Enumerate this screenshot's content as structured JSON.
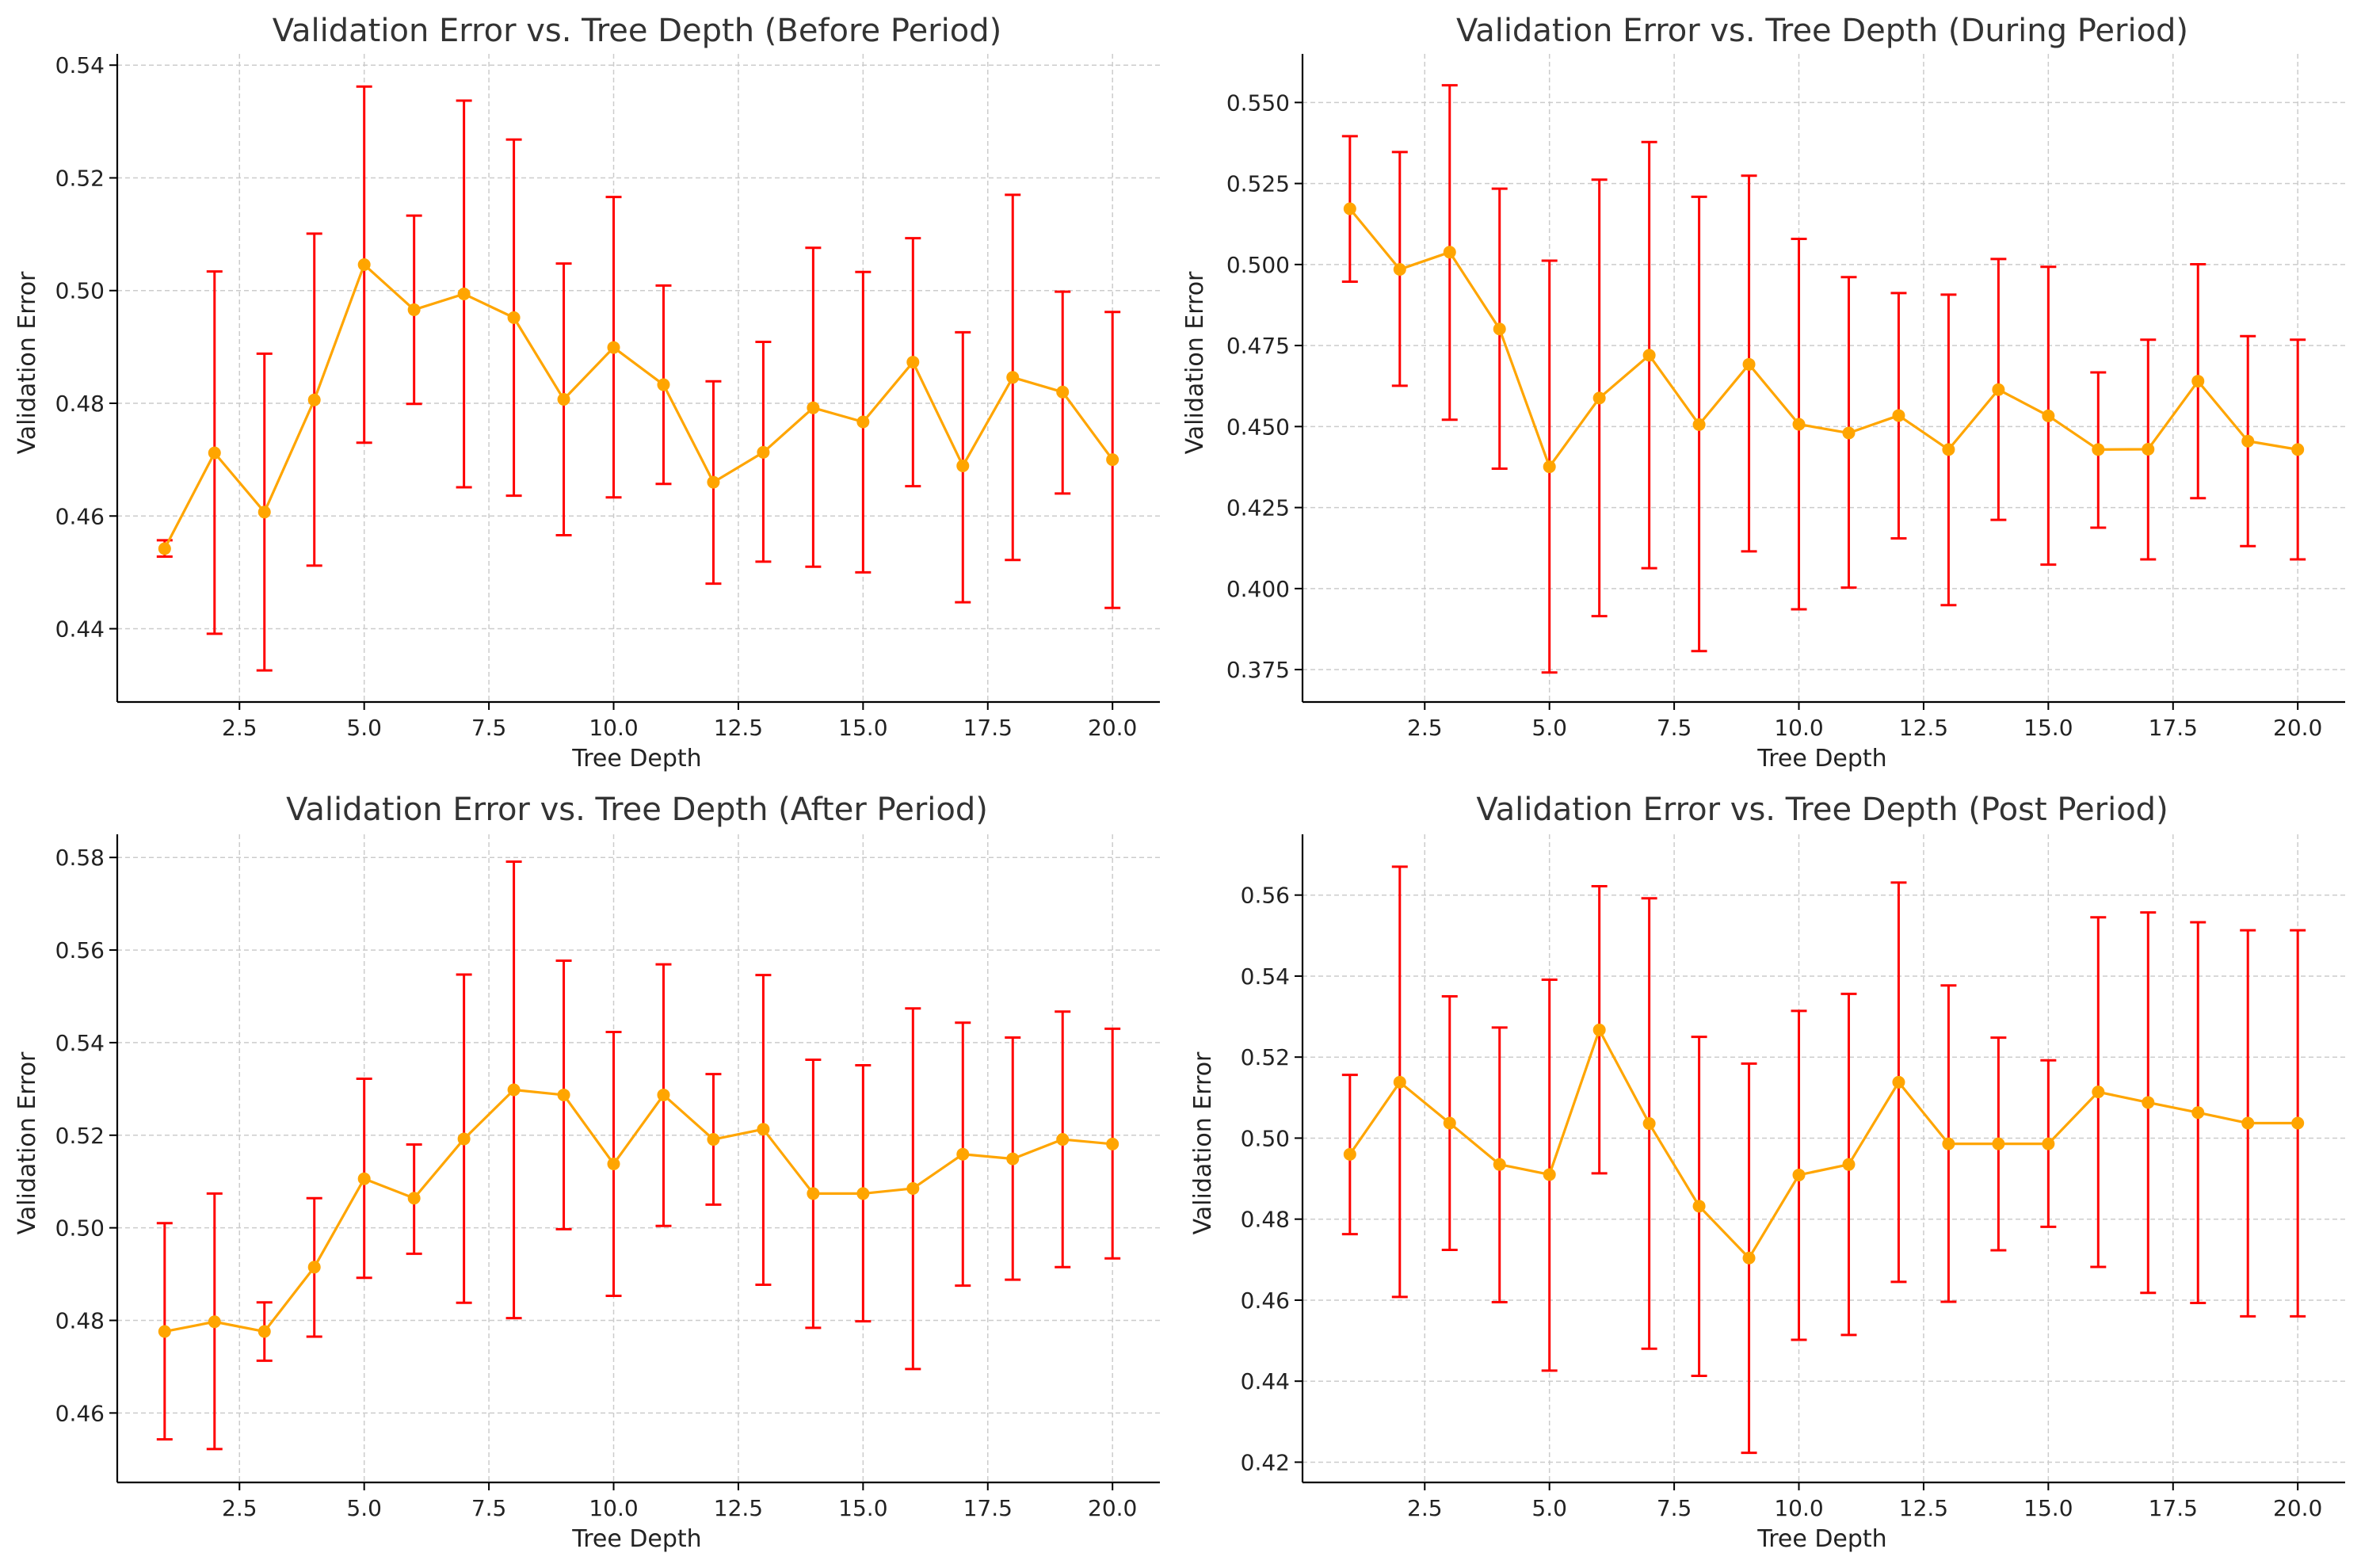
{
  "colors": {
    "line": "#ffa500",
    "errorbar": "#ff0000",
    "grid": "#cccccc",
    "axis": "#000000"
  },
  "chart_data": [
    {
      "type": "line",
      "title": "Validation Error vs. Tree Depth (Before Period)",
      "xlabel": "Tree Depth",
      "ylabel": "Validation Error",
      "grid": true,
      "xlim": [
        0.05,
        20.95
      ],
      "ylim": [
        0.427,
        0.542
      ],
      "xticks": [
        2.5,
        5.0,
        7.5,
        10.0,
        12.5,
        15.0,
        17.5,
        20.0
      ],
      "xtick_labels": [
        "2.5",
        "5.0",
        "7.5",
        "10.0",
        "12.5",
        "15.0",
        "17.5",
        "20.0"
      ],
      "yticks": [
        0.44,
        0.46,
        0.48,
        0.5,
        0.52,
        0.54
      ],
      "ytick_labels": [
        "0.44",
        "0.46",
        "0.48",
        "0.50",
        "0.52",
        "0.54"
      ],
      "x": [
        1,
        2,
        3,
        4,
        5,
        6,
        7,
        8,
        9,
        10,
        11,
        12,
        13,
        14,
        15,
        16,
        17,
        18,
        19,
        20
      ],
      "y": [
        0.4542,
        0.4712,
        0.4607,
        0.4806,
        0.5046,
        0.4966,
        0.4994,
        0.4952,
        0.4807,
        0.4899,
        0.4833,
        0.466,
        0.4713,
        0.4792,
        0.4767,
        0.4873,
        0.4689,
        0.4846,
        0.482,
        0.47
      ],
      "err_low": [
        0.4528,
        0.4391,
        0.4326,
        0.4512,
        0.473,
        0.4799,
        0.4651,
        0.4636,
        0.4566,
        0.4633,
        0.4657,
        0.448,
        0.4519,
        0.451,
        0.45,
        0.4653,
        0.4447,
        0.4522,
        0.464,
        0.4437
      ],
      "err_high": [
        0.4557,
        0.5034,
        0.4888,
        0.5101,
        0.5362,
        0.5133,
        0.5337,
        0.5268,
        0.5048,
        0.5166,
        0.5009,
        0.4839,
        0.4909,
        0.5076,
        0.5033,
        0.5093,
        0.4926,
        0.517,
        0.4998,
        0.4962
      ]
    },
    {
      "type": "line",
      "title": "Validation Error vs. Tree Depth (During Period)",
      "xlabel": "Tree Depth",
      "ylabel": "Validation Error",
      "grid": true,
      "xlim": [
        0.05,
        20.95
      ],
      "ylim": [
        0.365,
        0.565
      ],
      "xticks": [
        2.5,
        5.0,
        7.5,
        10.0,
        12.5,
        15.0,
        17.5,
        20.0
      ],
      "xtick_labels": [
        "2.5",
        "5.0",
        "7.5",
        "10.0",
        "12.5",
        "15.0",
        "17.5",
        "20.0"
      ],
      "yticks": [
        0.375,
        0.4,
        0.425,
        0.45,
        0.475,
        0.5,
        0.525,
        0.55
      ],
      "ytick_labels": [
        "0.375",
        "0.400",
        "0.425",
        "0.450",
        "0.475",
        "0.500",
        "0.525",
        "0.550"
      ],
      "x": [
        1,
        2,
        3,
        4,
        5,
        6,
        7,
        8,
        9,
        10,
        11,
        12,
        13,
        14,
        15,
        16,
        17,
        18,
        19,
        20
      ],
      "y": [
        0.5172,
        0.4985,
        0.5038,
        0.4801,
        0.4376,
        0.4588,
        0.472,
        0.4506,
        0.4692,
        0.4507,
        0.448,
        0.4534,
        0.4429,
        0.4614,
        0.4533,
        0.4429,
        0.443,
        0.464,
        0.4455,
        0.4429
      ],
      "err_low": [
        0.4947,
        0.4626,
        0.4521,
        0.437,
        0.3741,
        0.3915,
        0.4063,
        0.3807,
        0.4115,
        0.3936,
        0.4003,
        0.4155,
        0.3949,
        0.4212,
        0.4074,
        0.4188,
        0.409,
        0.4279,
        0.4131,
        0.409
      ],
      "err_high": [
        0.5396,
        0.5347,
        0.5553,
        0.5234,
        0.5012,
        0.5262,
        0.5378,
        0.5209,
        0.5274,
        0.5079,
        0.4961,
        0.4912,
        0.4907,
        0.5017,
        0.4993,
        0.4667,
        0.4768,
        0.5001,
        0.4779,
        0.4768
      ]
    },
    {
      "type": "line",
      "title": "Validation Error vs. Tree Depth (After Period)",
      "xlabel": "Tree Depth",
      "ylabel": "Validation Error",
      "grid": true,
      "xlim": [
        0.05,
        20.95
      ],
      "ylim": [
        0.445,
        0.585
      ],
      "xticks": [
        2.5,
        5.0,
        7.5,
        10.0,
        12.5,
        15.0,
        17.5,
        20.0
      ],
      "xtick_labels": [
        "2.5",
        "5.0",
        "7.5",
        "10.0",
        "12.5",
        "15.0",
        "17.5",
        "20.0"
      ],
      "yticks": [
        0.46,
        0.48,
        0.5,
        0.52,
        0.54,
        0.56,
        0.58
      ],
      "ytick_labels": [
        "0.46",
        "0.48",
        "0.50",
        "0.52",
        "0.54",
        "0.56",
        "0.58"
      ],
      "x": [
        1,
        2,
        3,
        4,
        5,
        6,
        7,
        8,
        9,
        10,
        11,
        12,
        13,
        14,
        15,
        16,
        17,
        18,
        19,
        20
      ],
      "y": [
        0.4776,
        0.4797,
        0.4776,
        0.4915,
        0.5106,
        0.5064,
        0.5192,
        0.5298,
        0.5287,
        0.5138,
        0.5287,
        0.5191,
        0.5213,
        0.5074,
        0.5074,
        0.5085,
        0.5159,
        0.5149,
        0.5191,
        0.5181
      ],
      "err_low": [
        0.4543,
        0.4522,
        0.4713,
        0.4765,
        0.4892,
        0.4944,
        0.4838,
        0.4805,
        0.4997,
        0.4853,
        0.5004,
        0.505,
        0.4877,
        0.4784,
        0.4798,
        0.4695,
        0.4875,
        0.4888,
        0.4915,
        0.4934
      ],
      "err_high": [
        0.501,
        0.5074,
        0.4839,
        0.5064,
        0.5322,
        0.518,
        0.5547,
        0.5791,
        0.5577,
        0.5423,
        0.5569,
        0.5332,
        0.5546,
        0.5363,
        0.5351,
        0.5474,
        0.5443,
        0.5411,
        0.5467,
        0.543
      ]
    },
    {
      "type": "line",
      "title": "Validation Error vs. Tree Depth (Post Period)",
      "xlabel": "Tree Depth",
      "ylabel": "Validation Error",
      "grid": true,
      "xlim": [
        0.05,
        20.95
      ],
      "ylim": [
        0.415,
        0.575
      ],
      "xticks": [
        2.5,
        5.0,
        7.5,
        10.0,
        12.5,
        15.0,
        17.5,
        20.0
      ],
      "xtick_labels": [
        "2.5",
        "5.0",
        "7.5",
        "10.0",
        "12.5",
        "15.0",
        "17.5",
        "20.0"
      ],
      "yticks": [
        0.42,
        0.44,
        0.46,
        0.48,
        0.5,
        0.52,
        0.54,
        0.56
      ],
      "ytick_labels": [
        "0.42",
        "0.44",
        "0.46",
        "0.48",
        "0.50",
        "0.52",
        "0.54",
        "0.56"
      ],
      "x": [
        1,
        2,
        3,
        4,
        5,
        6,
        7,
        8,
        9,
        10,
        11,
        12,
        13,
        14,
        15,
        16,
        17,
        18,
        19,
        20
      ],
      "y": [
        0.496,
        0.5138,
        0.5037,
        0.4935,
        0.491,
        0.5267,
        0.5036,
        0.4832,
        0.4704,
        0.4909,
        0.4935,
        0.5138,
        0.4986,
        0.4986,
        0.4986,
        0.5114,
        0.5088,
        0.5063,
        0.5037,
        0.5037
      ],
      "err_low": [
        0.4763,
        0.4608,
        0.4724,
        0.4595,
        0.4426,
        0.4913,
        0.448,
        0.4413,
        0.4223,
        0.4502,
        0.4514,
        0.4645,
        0.4596,
        0.4723,
        0.4781,
        0.4682,
        0.4618,
        0.4593,
        0.456,
        0.456
      ],
      "err_high": [
        0.5156,
        0.567,
        0.535,
        0.5273,
        0.5391,
        0.5622,
        0.5592,
        0.525,
        0.5184,
        0.5314,
        0.5356,
        0.5631,
        0.5377,
        0.5248,
        0.5192,
        0.5545,
        0.5557,
        0.5533,
        0.5513,
        0.5513
      ]
    }
  ]
}
